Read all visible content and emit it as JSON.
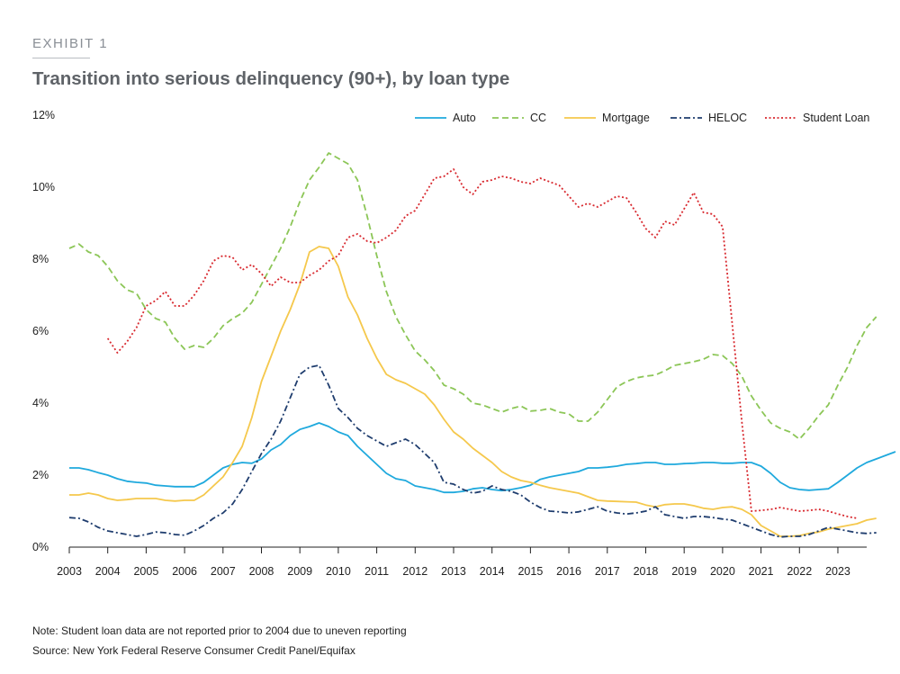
{
  "exhibit_label": "EXHIBIT 1",
  "title": "Transition into serious delinquency (90+), by loan type",
  "note": "Note: Student loan data are not reported prior to 2004 due to uneven reporting",
  "source": "Source: New York Federal Reserve Consumer Credit Panel/Equifax",
  "chart_data": {
    "type": "line",
    "title": "Transition into serious delinquency (90+), by loan type",
    "xlabel": "",
    "ylabel": "",
    "xlim": [
      2003,
      2023.75
    ],
    "ylim": [
      0,
      12
    ],
    "grid": false,
    "legend_position": "top-right",
    "x_ticks": [
      2003,
      2004,
      2005,
      2006,
      2007,
      2008,
      2009,
      2010,
      2011,
      2012,
      2013,
      2014,
      2015,
      2016,
      2017,
      2018,
      2019,
      2020,
      2021,
      2022,
      2023
    ],
    "x_tick_labels": [
      "2003",
      "2004",
      "2005",
      "2006",
      "2007",
      "2008",
      "2009",
      "2010",
      "2011",
      "2012",
      "2013",
      "2014",
      "2015",
      "2016",
      "2017",
      "2018",
      "2019",
      "2020",
      "2021",
      "2022",
      "2023"
    ],
    "y_ticks": [
      0,
      2,
      4,
      6,
      8,
      10,
      12
    ],
    "y_tick_labels": [
      "0%",
      "2%",
      "4%",
      "6%",
      "8%",
      "10%",
      "12%"
    ],
    "series": [
      {
        "name": "Auto",
        "color": "#1fa9dd",
        "dash": "solid",
        "x_start": 2003,
        "x_step": 0.25,
        "values": [
          2.2,
          2.2,
          2.15,
          2.07,
          2.0,
          1.9,
          1.83,
          1.8,
          1.78,
          1.72,
          1.7,
          1.68,
          1.68,
          1.68,
          1.8,
          2.0,
          2.2,
          2.3,
          2.35,
          2.33,
          2.45,
          2.7,
          2.85,
          3.1,
          3.27,
          3.35,
          3.45,
          3.35,
          3.2,
          3.1,
          2.8,
          2.55,
          2.3,
          2.05,
          1.9,
          1.85,
          1.7,
          1.65,
          1.6,
          1.52,
          1.52,
          1.55,
          1.62,
          1.65,
          1.6,
          1.57,
          1.6,
          1.65,
          1.72,
          1.88,
          1.95,
          2.0,
          2.05,
          2.1,
          2.2,
          2.2,
          2.22,
          2.25,
          2.3,
          2.32,
          2.35,
          2.35,
          2.3,
          2.3,
          2.32,
          2.33,
          2.35,
          2.35,
          2.33,
          2.33,
          2.35,
          2.35,
          2.25,
          2.05,
          1.8,
          1.65,
          1.6,
          1.58,
          1.6,
          1.62,
          1.8,
          2.0,
          2.2,
          2.35,
          2.45,
          2.55,
          2.65
        ]
      },
      {
        "name": "CC",
        "color": "#8cc657",
        "dash": "dashed",
        "x_start": 2003,
        "x_step": 0.25,
        "values": [
          8.3,
          8.42,
          8.2,
          8.1,
          7.8,
          7.4,
          7.15,
          7.05,
          6.6,
          6.35,
          6.25,
          5.8,
          5.5,
          5.6,
          5.55,
          5.8,
          6.15,
          6.35,
          6.5,
          6.8,
          7.3,
          7.8,
          8.3,
          8.9,
          9.6,
          10.2,
          10.55,
          10.95,
          10.8,
          10.65,
          10.2,
          9.2,
          8.1,
          7.1,
          6.4,
          5.9,
          5.45,
          5.2,
          4.9,
          4.5,
          4.4,
          4.25,
          4.0,
          3.95,
          3.85,
          3.75,
          3.85,
          3.92,
          3.78,
          3.8,
          3.85,
          3.75,
          3.7,
          3.5,
          3.5,
          3.75,
          4.1,
          4.45,
          4.6,
          4.7,
          4.75,
          4.78,
          4.9,
          5.05,
          5.1,
          5.15,
          5.22,
          5.35,
          5.32,
          5.1,
          4.75,
          4.2,
          3.8,
          3.45,
          3.3,
          3.2,
          3.0,
          3.3,
          3.65,
          3.95,
          4.5,
          5.0,
          5.6,
          6.1,
          6.4
        ]
      },
      {
        "name": "Mortgage",
        "color": "#f5c84c",
        "dash": "solid",
        "x_start": 2003,
        "x_step": 0.25,
        "values": [
          1.45,
          1.45,
          1.5,
          1.45,
          1.35,
          1.3,
          1.32,
          1.35,
          1.35,
          1.35,
          1.3,
          1.28,
          1.3,
          1.3,
          1.45,
          1.7,
          1.95,
          2.35,
          2.8,
          3.6,
          4.6,
          5.3,
          6.0,
          6.6,
          7.3,
          8.2,
          8.35,
          8.3,
          7.8,
          6.95,
          6.45,
          5.8,
          5.25,
          4.8,
          4.65,
          4.55,
          4.4,
          4.25,
          3.95,
          3.55,
          3.2,
          3.0,
          2.75,
          2.55,
          2.35,
          2.1,
          1.95,
          1.85,
          1.8,
          1.72,
          1.65,
          1.6,
          1.55,
          1.5,
          1.4,
          1.3,
          1.28,
          1.27,
          1.26,
          1.25,
          1.17,
          1.12,
          1.18,
          1.2,
          1.2,
          1.15,
          1.08,
          1.05,
          1.1,
          1.12,
          1.05,
          0.9,
          0.6,
          0.45,
          0.3,
          0.3,
          0.32,
          0.38,
          0.42,
          0.5,
          0.55,
          0.6,
          0.65,
          0.75,
          0.8
        ]
      },
      {
        "name": "HELOC",
        "color": "#1f3d6e",
        "dash": "dashdot",
        "x_start": 2003,
        "x_step": 0.25,
        "values": [
          0.82,
          0.8,
          0.7,
          0.55,
          0.45,
          0.4,
          0.35,
          0.3,
          0.35,
          0.42,
          0.4,
          0.35,
          0.33,
          0.45,
          0.6,
          0.8,
          0.95,
          1.2,
          1.6,
          2.1,
          2.6,
          3.0,
          3.5,
          4.15,
          4.8,
          5.0,
          5.05,
          4.5,
          3.85,
          3.6,
          3.3,
          3.1,
          2.95,
          2.8,
          2.9,
          3.0,
          2.85,
          2.6,
          2.35,
          1.8,
          1.75,
          1.6,
          1.5,
          1.55,
          1.7,
          1.6,
          1.55,
          1.45,
          1.25,
          1.1,
          1.0,
          0.98,
          0.95,
          0.98,
          1.05,
          1.12,
          1.0,
          0.95,
          0.92,
          0.95,
          1.0,
          1.12,
          0.9,
          0.85,
          0.8,
          0.85,
          0.85,
          0.82,
          0.78,
          0.75,
          0.65,
          0.55,
          0.45,
          0.35,
          0.28,
          0.3,
          0.3,
          0.35,
          0.45,
          0.55,
          0.5,
          0.45,
          0.4,
          0.38,
          0.4
        ]
      },
      {
        "name": "Student Loan",
        "color": "#d8292f",
        "dash": "dotted",
        "x_start": 2004,
        "x_step": 0.25,
        "values": [
          5.8,
          5.4,
          5.7,
          6.1,
          6.7,
          6.85,
          7.1,
          6.7,
          6.7,
          7.0,
          7.4,
          7.95,
          8.1,
          8.05,
          7.7,
          7.85,
          7.6,
          7.25,
          7.5,
          7.35,
          7.35,
          7.55,
          7.7,
          7.95,
          8.1,
          8.6,
          8.7,
          8.5,
          8.45,
          8.6,
          8.8,
          9.2,
          9.35,
          9.8,
          10.25,
          10.3,
          10.5,
          10.0,
          9.8,
          10.15,
          10.2,
          10.3,
          10.25,
          10.15,
          10.1,
          10.25,
          10.15,
          10.05,
          9.75,
          9.45,
          9.55,
          9.45,
          9.6,
          9.75,
          9.7,
          9.3,
          8.85,
          8.6,
          9.05,
          8.95,
          9.4,
          9.85,
          9.3,
          9.25,
          8.9,
          6.2,
          3.5,
          1.0,
          1.02,
          1.05,
          1.1,
          1.05,
          1.0,
          1.02,
          1.05,
          1.0,
          0.92,
          0.85,
          0.8
        ]
      }
    ]
  }
}
